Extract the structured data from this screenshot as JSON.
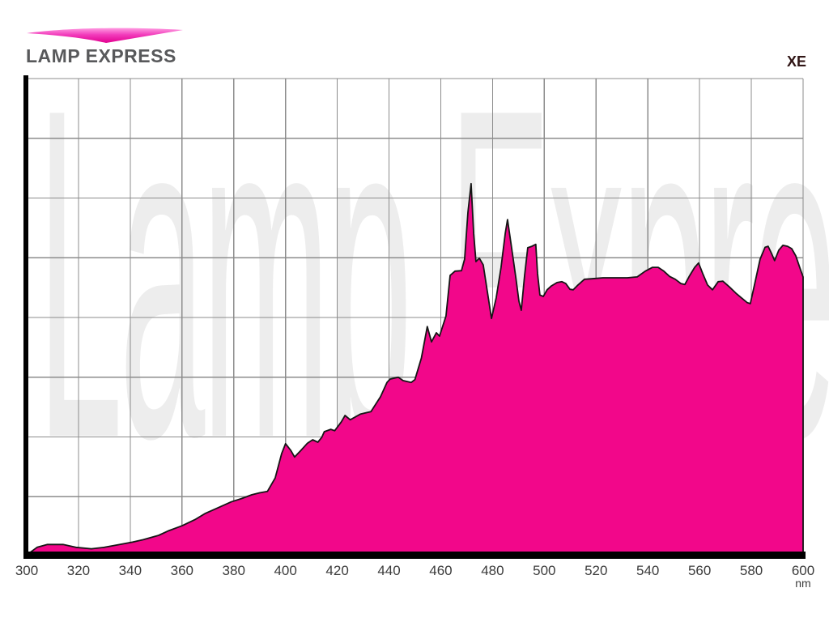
{
  "header": {
    "logo_text": "LAMP EXPRESS",
    "lamp_type_label": "XE"
  },
  "watermark_text": "Lamp Express",
  "colors": {
    "background": "#ffffff",
    "spectrum_fill": "#F2078A",
    "spectrum_outline": "#151515",
    "grid": "#8c8c8c",
    "axis": "#000000",
    "watermark": "#ededed",
    "tick_label": "#3b3b3b",
    "xe_label": "#301515",
    "logo_text": "#58595b",
    "swoosh_top": "#ff9ce2",
    "swoosh_bottom": "#e2008f"
  },
  "x_axis": {
    "unit": "nm",
    "min": 300,
    "max": 600,
    "tick_step": 20,
    "ticks": [
      300,
      320,
      340,
      360,
      380,
      400,
      420,
      440,
      460,
      480,
      500,
      520,
      540,
      560,
      580,
      600
    ]
  },
  "y_axis": {
    "tick_labels_visible": false
  },
  "chart_data": {
    "type": "area",
    "title": "",
    "series_name": "XE",
    "xlabel": "nm",
    "ylabel": "",
    "xlim": [
      300,
      600
    ],
    "ylim": [
      0,
      100
    ],
    "grid": true,
    "grid_rows": 8,
    "grid_cols": 15,
    "legend_position": "top-right",
    "points": [
      [
        300,
        0.3
      ],
      [
        304,
        1.9
      ],
      [
        308,
        2.5
      ],
      [
        314,
        2.5
      ],
      [
        319,
        1.9
      ],
      [
        325,
        1.6
      ],
      [
        330,
        1.9
      ],
      [
        336,
        2.5
      ],
      [
        341,
        3.0
      ],
      [
        345,
        3.5
      ],
      [
        351,
        4.4
      ],
      [
        355,
        5.4
      ],
      [
        360,
        6.4
      ],
      [
        365,
        7.7
      ],
      [
        369,
        9.0
      ],
      [
        374,
        10.2
      ],
      [
        379,
        11.4
      ],
      [
        383,
        12.1
      ],
      [
        387,
        12.9
      ],
      [
        390,
        13.3
      ],
      [
        393,
        13.6
      ],
      [
        396,
        16.4
      ],
      [
        398.5,
        21.5
      ],
      [
        400,
        23.6
      ],
      [
        402,
        22.2
      ],
      [
        403.5,
        20.8
      ],
      [
        406,
        22.2
      ],
      [
        408.5,
        23.7
      ],
      [
        410.5,
        24.4
      ],
      [
        412.5,
        23.9
      ],
      [
        414,
        24.9
      ],
      [
        415,
        26.1
      ],
      [
        417.5,
        26.6
      ],
      [
        419,
        26.3
      ],
      [
        421.5,
        28.1
      ],
      [
        423,
        29.5
      ],
      [
        425,
        28.6
      ],
      [
        429,
        29.8
      ],
      [
        433,
        30.3
      ],
      [
        436.7,
        33.4
      ],
      [
        439.2,
        36.4
      ],
      [
        440.4,
        37.1
      ],
      [
        443.6,
        37.5
      ],
      [
        445.4,
        36.8
      ],
      [
        448.6,
        36.4
      ],
      [
        450,
        37.0
      ],
      [
        452.5,
        41.5
      ],
      [
        454.8,
        48.1
      ],
      [
        456.4,
        44.9
      ],
      [
        458.3,
        46.8
      ],
      [
        459.5,
        46.1
      ],
      [
        462.0,
        50.3
      ],
      [
        463.6,
        58.8
      ],
      [
        465.5,
        59.7
      ],
      [
        468.0,
        59.8
      ],
      [
        469.2,
        62.2
      ],
      [
        470.5,
        72.0
      ],
      [
        471.7,
        78.0
      ],
      [
        472.7,
        67.6
      ],
      [
        473.6,
        61.7
      ],
      [
        474.9,
        62.4
      ],
      [
        476.4,
        61.0
      ],
      [
        478.0,
        55.4
      ],
      [
        479.6,
        49.8
      ],
      [
        481.4,
        54.1
      ],
      [
        483.3,
        60.5
      ],
      [
        484.9,
        67.6
      ],
      [
        485.8,
        70.5
      ],
      [
        487.1,
        65.6
      ],
      [
        489.0,
        58.3
      ],
      [
        490.2,
        53.4
      ],
      [
        491.1,
        51.5
      ],
      [
        492.4,
        58.8
      ],
      [
        493.6,
        64.6
      ],
      [
        495.2,
        64.9
      ],
      [
        496.7,
        65.3
      ],
      [
        497.4,
        59.2
      ],
      [
        498.3,
        54.7
      ],
      [
        499.6,
        54.4
      ],
      [
        501.1,
        55.8
      ],
      [
        502.7,
        56.6
      ],
      [
        504.9,
        57.3
      ],
      [
        506.8,
        57.5
      ],
      [
        508.3,
        57.1
      ],
      [
        509.9,
        55.9
      ],
      [
        511.2,
        55.8
      ],
      [
        513.0,
        56.8
      ],
      [
        515.5,
        58.0
      ],
      [
        518.3,
        58.1
      ],
      [
        522.7,
        58.3
      ],
      [
        527.4,
        58.3
      ],
      [
        532.1,
        58.3
      ],
      [
        535.9,
        58.5
      ],
      [
        539.0,
        59.7
      ],
      [
        541.8,
        60.5
      ],
      [
        544.0,
        60.5
      ],
      [
        546.2,
        59.7
      ],
      [
        548.4,
        58.6
      ],
      [
        550.6,
        58.0
      ],
      [
        552.8,
        57.1
      ],
      [
        554.3,
        56.9
      ],
      [
        556.2,
        58.8
      ],
      [
        558.1,
        60.5
      ],
      [
        559.6,
        61.4
      ],
      [
        561.2,
        59.2
      ],
      [
        563.1,
        56.8
      ],
      [
        565.0,
        55.8
      ],
      [
        567.2,
        57.5
      ],
      [
        569.0,
        57.6
      ],
      [
        571.5,
        56.4
      ],
      [
        574.0,
        55.1
      ],
      [
        576.2,
        54.1
      ],
      [
        578.4,
        53.1
      ],
      [
        579.6,
        52.9
      ],
      [
        581.2,
        56.8
      ],
      [
        583.4,
        62.2
      ],
      [
        585.3,
        64.7
      ],
      [
        586.5,
        64.9
      ],
      [
        587.8,
        63.4
      ],
      [
        589.0,
        61.9
      ],
      [
        590.6,
        64.1
      ],
      [
        592.2,
        65.1
      ],
      [
        594.0,
        64.9
      ],
      [
        595.6,
        64.4
      ],
      [
        597.2,
        62.9
      ],
      [
        598.7,
        60.5
      ],
      [
        600.0,
        58.5
      ]
    ]
  }
}
